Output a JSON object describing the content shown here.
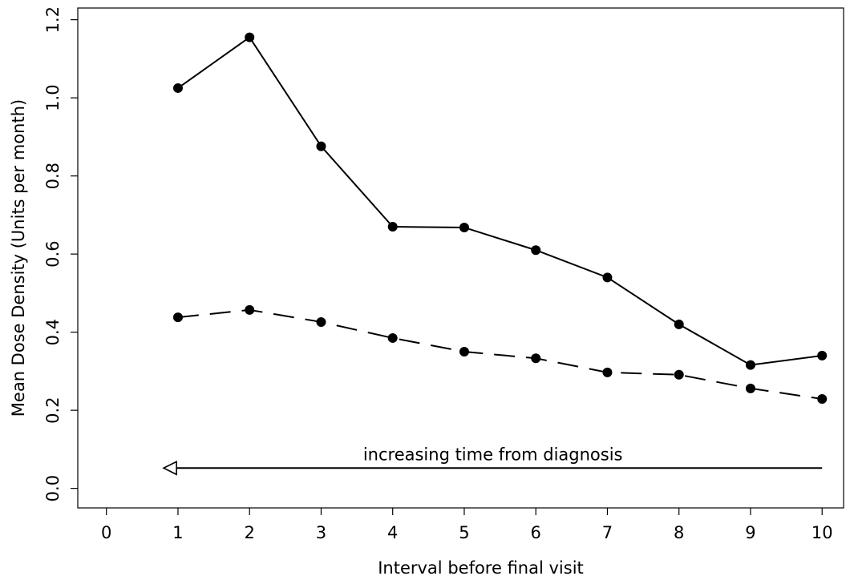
{
  "chart_data": {
    "type": "line",
    "xlabel": "Interval before final visit",
    "ylabel": "Mean Dose Density (Units per month)",
    "xlim": [
      -0.4,
      10.3
    ],
    "ylim": [
      -0.05,
      1.23
    ],
    "xticks": [
      0,
      1,
      2,
      3,
      4,
      5,
      6,
      7,
      8,
      9,
      10
    ],
    "yticks": [
      0.0,
      0.2,
      0.4,
      0.6,
      0.8,
      1.0,
      1.2
    ],
    "ytick_labels": [
      "0.0",
      "0.2",
      "0.4",
      "0.6",
      "0.8",
      "1.0",
      "1.2"
    ],
    "x": [
      1,
      2,
      3,
      4,
      5,
      6,
      7,
      8,
      9,
      10
    ],
    "series": [
      {
        "style": "solid",
        "values": [
          1.025,
          1.155,
          0.876,
          0.67,
          0.668,
          0.61,
          0.54,
          0.42,
          0.316,
          0.34
        ]
      },
      {
        "style": "dashed",
        "values": [
          0.438,
          0.457,
          0.426,
          0.385,
          0.35,
          0.333,
          0.297,
          0.291,
          0.256,
          0.229
        ]
      }
    ],
    "annotation": {
      "text": "increasing time from diagnosis",
      "arrow": {
        "from_x": 10,
        "to_x": 0.8,
        "y": 0.052,
        "direction": "left"
      }
    },
    "grid": false,
    "legend": "none"
  }
}
